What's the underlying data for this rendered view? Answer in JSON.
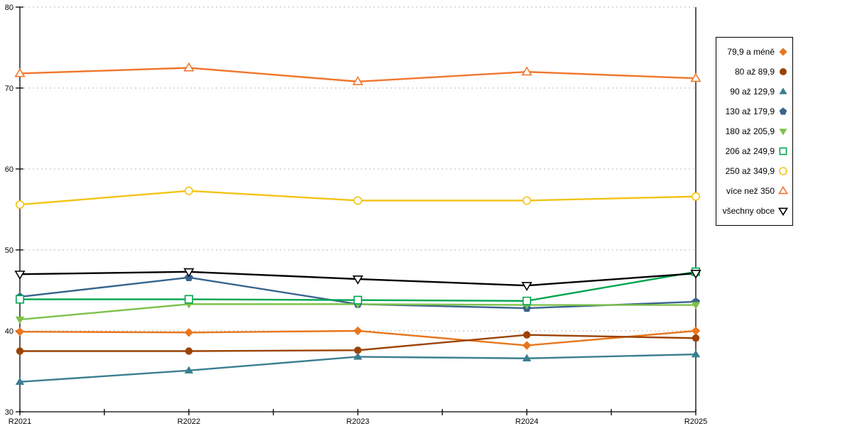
{
  "chart_data": {
    "type": "line",
    "title": "",
    "xlabel": "",
    "ylabel": "",
    "categories": [
      "R2021",
      "R2022",
      "R2023",
      "R2024",
      "R2025"
    ],
    "series": [
      {
        "name": "79,9 a méně",
        "marker": "diamond",
        "fill": "solid",
        "color": "#E8761D",
        "values": [
          39.9,
          39.8,
          40.0,
          38.2,
          40.0
        ]
      },
      {
        "name": "80 až 89,9",
        "marker": "circle",
        "fill": "solid",
        "color": "#9C4306",
        "values": [
          37.5,
          37.5,
          37.6,
          39.5,
          39.1
        ]
      },
      {
        "name": "90 až 129,9",
        "marker": "triangle-up",
        "fill": "solid",
        "color": "#3B7E91",
        "values": [
          33.7,
          35.1,
          36.8,
          36.6,
          37.1
        ]
      },
      {
        "name": "130 až 179,9",
        "marker": "pentagon",
        "fill": "solid",
        "color": "#38648E",
        "values": [
          44.2,
          46.6,
          43.3,
          42.8,
          43.6
        ]
      },
      {
        "name": "180 až 205,9",
        "marker": "triangle-down",
        "fill": "solid",
        "color": "#7EC14B",
        "values": [
          41.4,
          43.3,
          43.3,
          43.2,
          43.2
        ]
      },
      {
        "name": "206 až 249,9",
        "marker": "square",
        "fill": "open",
        "color": "#00A551",
        "values": [
          43.9,
          43.9,
          43.8,
          43.7,
          47.3
        ]
      },
      {
        "name": "250 až 349,9",
        "marker": "circle",
        "fill": "open",
        "color": "#F3C314",
        "values": [
          55.6,
          57.3,
          56.1,
          56.1,
          56.6
        ]
      },
      {
        "name": "více než 350",
        "marker": "triangle-up",
        "fill": "open",
        "color": "#F0772D",
        "values": [
          71.8,
          72.5,
          70.8,
          72.0,
          71.2
        ]
      },
      {
        "name": "všechny obce",
        "marker": "triangle-down",
        "fill": "open",
        "color": "#000000",
        "values": [
          47.0,
          47.3,
          46.4,
          45.6,
          47.1
        ]
      }
    ],
    "ylim": [
      30,
      80
    ],
    "yticks": [
      30,
      40,
      50,
      60,
      70,
      80
    ],
    "grid": "horizontal-dashed",
    "gridline_color": "#b8b8b8",
    "axis_color": "#000000",
    "legend_position": "right"
  }
}
